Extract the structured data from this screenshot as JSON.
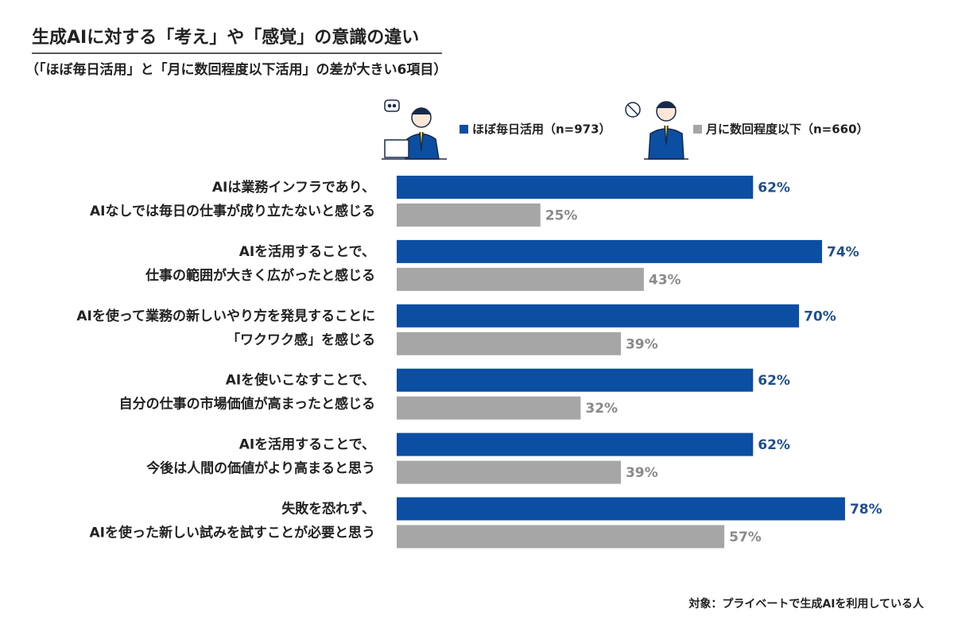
{
  "chart_data": {
    "type": "bar",
    "orientation": "horizontal",
    "title": "生成AIに対する「考え」や「感覚」の意識の違い",
    "subtitle": "（「ほぼ毎日活用」と「月に数回程度以下活用」の差が大きい6項目）",
    "categories": [
      [
        "AIは業務インフラであり、",
        "AIなしでは毎日の仕事が成り立たないと感じる"
      ],
      [
        "AIを活用することで、",
        "仕事の範囲が大きく広がったと感じる"
      ],
      [
        "AIを使って業務の新しいやり方を発見することに",
        "「ワクワク感」を感じる"
      ],
      [
        "AIを使いこなすことで、",
        "自分の仕事の市場価値が高まったと感じる"
      ],
      [
        "AIを活用することで、",
        "今後は人間の価値がより高まると思う"
      ],
      [
        "失敗を恐れず、",
        "AIを使った新しい試みを試すことが必要と思う"
      ]
    ],
    "series": [
      {
        "name": "ほぼ毎日活用（n=973）",
        "color": "#0b4ea2",
        "label_color": "#1f4f8f",
        "values": [
          62,
          74,
          70,
          62,
          62,
          78
        ],
        "value_labels": [
          "62%",
          "74%",
          "70%",
          "62%",
          "62%",
          "78%"
        ]
      },
      {
        "name": "月に数回程度以下（n=660）",
        "color": "#a6a6a6",
        "label_color": "#8a8a8a",
        "values": [
          25,
          43,
          39,
          32,
          39,
          57
        ],
        "value_labels": [
          "25%",
          "43%",
          "39%",
          "32%",
          "39%",
          "57%"
        ]
      }
    ],
    "xlim": [
      0,
      100
    ],
    "footnote": "対象：プライベートで生成AIを利用している人"
  }
}
